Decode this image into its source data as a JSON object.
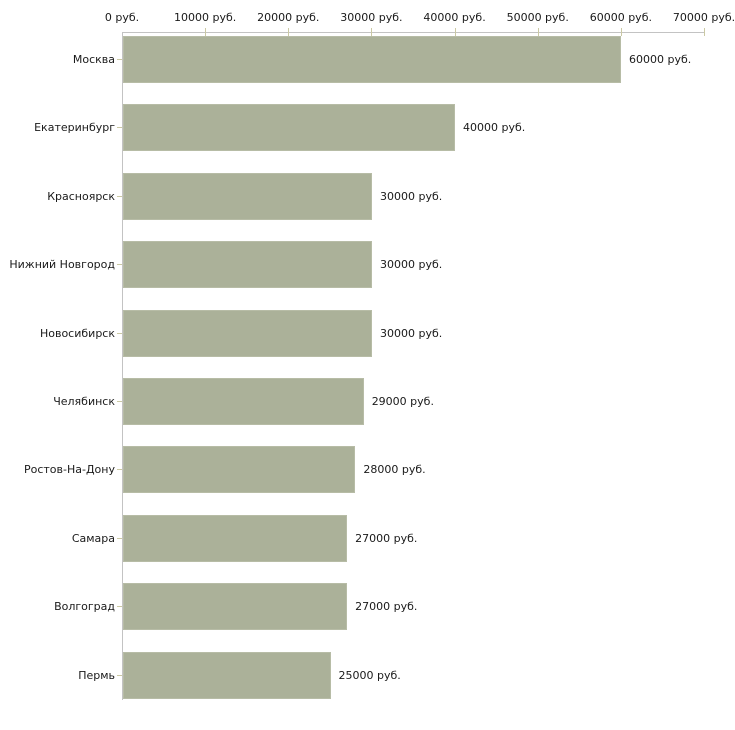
{
  "chart_data": {
    "type": "bar",
    "orientation": "horizontal",
    "categories": [
      "Москва",
      "Екатеринбург",
      "Красноярск",
      "Нижний Новгород",
      "Новосибирск",
      "Челябинск",
      "Ростов-На-Дону",
      "Самара",
      "Волгоград",
      "Пермь"
    ],
    "values": [
      60000,
      40000,
      30000,
      30000,
      30000,
      29000,
      28000,
      27000,
      27000,
      25000
    ],
    "value_labels": [
      "60000 руб.",
      "40000 руб.",
      "30000 руб.",
      "30000 руб.",
      "30000 руб.",
      "29000 руб.",
      "28000 руб.",
      "27000 руб.",
      "27000 руб.",
      "25000 руб."
    ],
    "unit": "руб.",
    "x_axis": {
      "position": "top",
      "min": 0,
      "max": 70000,
      "tick_step": 10000,
      "tick_labels": [
        "0 руб.",
        "10000 руб.",
        "20000 руб.",
        "30000 руб.",
        "40000 руб.",
        "50000 руб.",
        "60000 руб.",
        "70000 руб."
      ]
    },
    "grid": false,
    "legend": false,
    "colors": {
      "bar": "#abb199",
      "bar_border": "#b7bca6",
      "axis_line": "#c3c3c3",
      "tick_mark": "#cbc9a4",
      "text": "#1a1a1a",
      "background": "#ffffff"
    }
  }
}
